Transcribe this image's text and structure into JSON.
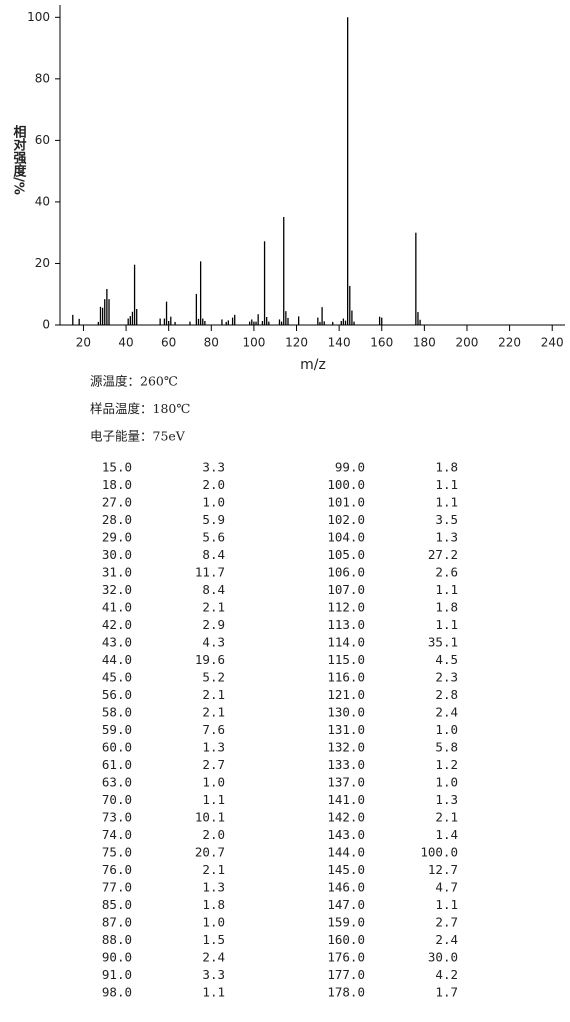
{
  "chart_data": {
    "type": "bar",
    "y_label": "相对强度/%",
    "x_label": "m/z",
    "x": [
      15,
      18,
      27,
      28,
      29,
      30,
      31,
      32,
      41,
      42,
      43,
      44,
      45,
      56,
      58,
      59,
      60,
      61,
      63,
      70,
      73,
      74,
      75,
      76,
      77,
      85,
      87,
      88,
      90,
      91,
      98,
      99,
      100,
      101,
      102,
      104,
      105,
      106,
      107,
      112,
      113,
      114,
      115,
      116,
      121,
      130,
      131,
      132,
      133,
      137,
      141,
      142,
      143,
      144,
      145,
      146,
      147,
      159,
      160,
      176,
      177,
      178
    ],
    "x_labels": [
      "15.0",
      "18.0",
      "27.0",
      "28.0",
      "29.0",
      "30.0",
      "31.0",
      "32.0",
      "41.0",
      "42.0",
      "43.0",
      "44.0",
      "45.0",
      "56.0",
      "58.0",
      "59.0",
      "60.0",
      "61.0",
      "63.0",
      "70.0",
      "73.0",
      "74.0",
      "75.0",
      "76.0",
      "77.0",
      "85.0",
      "87.0",
      "88.0",
      "90.0",
      "91.0",
      "98.0",
      "99.0",
      "100.0",
      "101.0",
      "102.0",
      "104.0",
      "105.0",
      "106.0",
      "107.0",
      "112.0",
      "113.0",
      "114.0",
      "115.0",
      "116.0",
      "121.0",
      "130.0",
      "131.0",
      "132.0",
      "133.0",
      "137.0",
      "141.0",
      "142.0",
      "143.0",
      "144.0",
      "145.0",
      "146.0",
      "147.0",
      "159.0",
      "160.0",
      "176.0",
      "177.0",
      "178.0"
    ],
    "values": [
      3.3,
      2.0,
      1.0,
      5.9,
      5.6,
      8.4,
      11.7,
      8.4,
      2.1,
      2.9,
      4.3,
      19.6,
      5.2,
      2.1,
      2.1,
      7.6,
      1.3,
      2.7,
      1.0,
      1.1,
      10.1,
      2.0,
      20.7,
      2.1,
      1.3,
      1.8,
      1.0,
      1.5,
      2.4,
      3.3,
      1.1,
      1.8,
      1.1,
      1.1,
      3.5,
      1.3,
      27.2,
      2.6,
      1.1,
      1.8,
      1.1,
      35.1,
      4.5,
      2.3,
      2.8,
      2.4,
      1.0,
      5.8,
      1.2,
      1.0,
      1.3,
      2.1,
      1.4,
      100.0,
      12.7,
      4.7,
      1.1,
      2.7,
      2.4,
      30.0,
      4.2,
      1.7
    ],
    "value_labels": [
      "3.3",
      "2.0",
      "1.0",
      "5.9",
      "5.6",
      "8.4",
      "11.7",
      "8.4",
      "2.1",
      "2.9",
      "4.3",
      "19.6",
      "5.2",
      "2.1",
      "2.1",
      "7.6",
      "1.3",
      "2.7",
      "1.0",
      "1.1",
      "10.1",
      "2.0",
      "20.7",
      "2.1",
      "1.3",
      "1.8",
      "1.0",
      "1.5",
      "2.4",
      "3.3",
      "1.1",
      "1.8",
      "1.1",
      "1.1",
      "3.5",
      "1.3",
      "27.2",
      "2.6",
      "1.1",
      "1.8",
      "1.1",
      "35.1",
      "4.5",
      "2.3",
      "2.8",
      "2.4",
      "1.0",
      "5.8",
      "1.2",
      "1.0",
      "1.3",
      "2.1",
      "1.4",
      "100.0",
      "12.7",
      "4.7",
      "1.1",
      "2.7",
      "2.4",
      "30.0",
      "4.2",
      "1.7"
    ],
    "color": "#000000",
    "xlim": [
      9,
      246
    ],
    "xticks": [
      20,
      40,
      60,
      80,
      100,
      120,
      140,
      160,
      180,
      200,
      220,
      240
    ],
    "ylim": [
      0,
      104
    ],
    "yticks": [
      0,
      20,
      40,
      60,
      80,
      100
    ]
  },
  "info": [
    "源温度：260℃",
    "样品温度：180℃",
    "电子能量：75eV"
  ]
}
